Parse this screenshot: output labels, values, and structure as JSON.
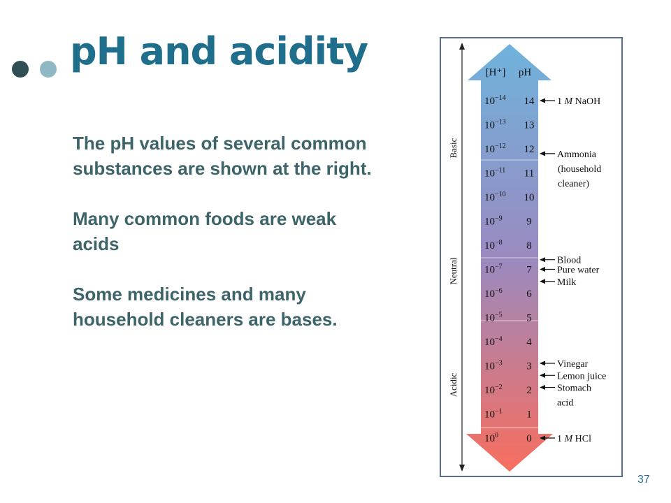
{
  "slide": {
    "title": "pH and acidity",
    "paragraphs": [
      "The pH values of several common substances are shown at the right.",
      "Many common foods are weak acids",
      "Some medicines and many household cleaners are bases."
    ],
    "page_number": "37"
  },
  "scale": {
    "header_h": "[H⁺]",
    "header_ph": "pH",
    "region_labels": [
      "Basic",
      "Neutral",
      "Acidic"
    ],
    "levels": [
      {
        "exp": "−14",
        "ph": "14"
      },
      {
        "exp": "−13",
        "ph": "13"
      },
      {
        "exp": "−12",
        "ph": "12"
      },
      {
        "exp": "−11",
        "ph": "11"
      },
      {
        "exp": "−10",
        "ph": "10"
      },
      {
        "exp": "−9",
        "ph": "9"
      },
      {
        "exp": "−8",
        "ph": "8"
      },
      {
        "exp": "−7",
        "ph": "7"
      },
      {
        "exp": "−6",
        "ph": "6"
      },
      {
        "exp": "−5",
        "ph": "5"
      },
      {
        "exp": "−4",
        "ph": "4"
      },
      {
        "exp": "−3",
        "ph": "3"
      },
      {
        "exp": "−2",
        "ph": "2"
      },
      {
        "exp": "−1",
        "ph": "1"
      },
      {
        "exp": "0",
        "ph": "0"
      }
    ],
    "substances": [
      {
        "lines": [
          "1 M NaOH"
        ],
        "ph": 14
      },
      {
        "lines": [
          "Ammonia",
          "(household",
          "cleaner)"
        ],
        "ph": 11.8
      },
      {
        "lines": [
          "Blood"
        ],
        "ph": 7.4
      },
      {
        "lines": [
          "Pure water"
        ],
        "ph": 7
      },
      {
        "lines": [
          "Milk"
        ],
        "ph": 6.5
      },
      {
        "lines": [
          "Vinegar"
        ],
        "ph": 3.1
      },
      {
        "lines": [
          "Lemon juice"
        ],
        "ph": 2.6
      },
      {
        "lines": [
          "Stomach",
          "acid"
        ],
        "ph": 2.1
      },
      {
        "lines": [
          "1 M HCl"
        ],
        "ph": 0
      }
    ],
    "colors": {
      "basic_top": "#6fb3dc",
      "neutral": "#9a8ac0",
      "acidic_bottom": "#f86e5e",
      "frame": "#5b6c8f"
    }
  }
}
